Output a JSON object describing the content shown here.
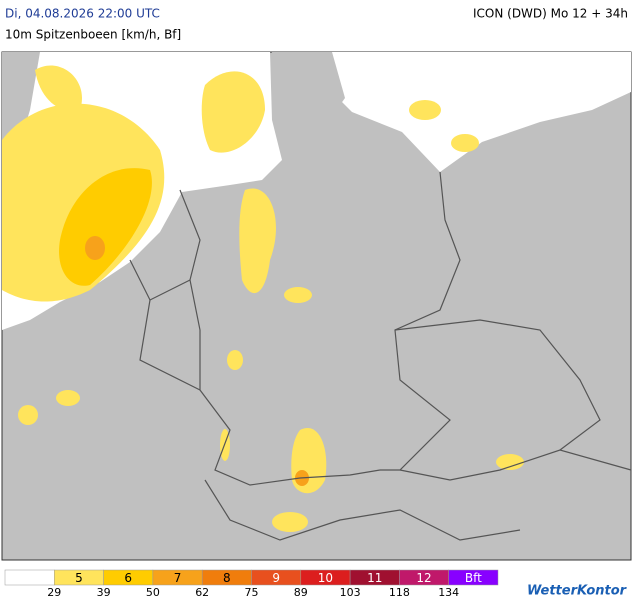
{
  "header": {
    "title": "Di, 04.08.2026 22:00 UTC",
    "model": "ICON (DWD) Mo 12 + 34h",
    "subtitle": "10m Spitzenboeen [km/h, Bf]"
  },
  "legend": {
    "colors": [
      "#ffffff",
      "#ffe45c",
      "#ffcc00",
      "#f7a21b",
      "#f07d0c",
      "#e8501e",
      "#dc1e1e",
      "#a01030",
      "#c0186a",
      "#8800ff"
    ],
    "bft": [
      5,
      6,
      7,
      8,
      9,
      10,
      11,
      12,
      "Bft"
    ],
    "kmh": [
      29,
      39,
      50,
      62,
      75,
      89,
      103,
      118,
      134
    ]
  },
  "brand": "WetterKontor"
}
